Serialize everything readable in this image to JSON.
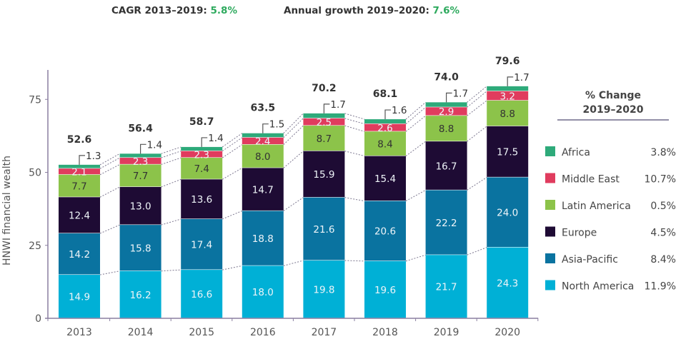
{
  "header": {
    "cagr_label": "CAGR 2013–2019: ",
    "cagr_value": "5.8%",
    "annual_label": "Annual growth 2019–2020: ",
    "annual_value": "7.6%"
  },
  "chart_data": {
    "type": "bar",
    "stacked": true,
    "title": "",
    "xlabel": "",
    "ylabel": "HNWI financial wealth",
    "ylim": [
      0,
      88
    ],
    "yticks": [
      0,
      25,
      50,
      75
    ],
    "categories": [
      "2013",
      "2014",
      "2015",
      "2016",
      "2017",
      "2018",
      "2019",
      "2020"
    ],
    "totals": [
      52.6,
      56.4,
      58.7,
      63.5,
      70.2,
      68.1,
      74.0,
      79.6
    ],
    "series": [
      {
        "name": "North America",
        "color": "#00b0d6",
        "label_color": "white",
        "values": [
          14.9,
          16.2,
          16.6,
          18.0,
          19.8,
          19.6,
          21.7,
          24.3
        ]
      },
      {
        "name": "Asia-Pacific",
        "color": "#0a73a0",
        "label_color": "white",
        "values": [
          14.2,
          15.8,
          17.4,
          18.8,
          21.6,
          20.6,
          22.2,
          24.0
        ]
      },
      {
        "name": "Europe",
        "color": "#1e0b34",
        "label_color": "white",
        "values": [
          12.4,
          13.0,
          13.6,
          14.7,
          15.9,
          15.4,
          16.7,
          17.5
        ]
      },
      {
        "name": "Latin America",
        "color": "#8cc34a",
        "label_color": "dark",
        "values": [
          7.7,
          7.7,
          7.4,
          8.0,
          8.7,
          8.4,
          8.8,
          8.8
        ]
      },
      {
        "name": "Middle East",
        "color": "#e03c5e",
        "label_color": "white",
        "values": [
          2.1,
          2.3,
          2.3,
          2.4,
          2.5,
          2.6,
          2.9,
          3.2
        ]
      },
      {
        "name": "Africa",
        "color": "#2eaa7a",
        "label_color": "callout",
        "values": [
          1.3,
          1.4,
          1.4,
          1.5,
          1.7,
          1.6,
          1.7,
          1.7
        ]
      }
    ],
    "legend": {
      "title_line1": "% Change",
      "title_line2": "2019–2020",
      "placement": "right",
      "items": [
        {
          "name": "Africa",
          "color": "#2eaa7a",
          "change": "3.8%"
        },
        {
          "name": "Middle East",
          "color": "#e03c5e",
          "change": "10.7%"
        },
        {
          "name": "Latin America",
          "color": "#8cc34a",
          "change": "0.5%"
        },
        {
          "name": "Europe",
          "color": "#1e0b34",
          "change": "4.5%"
        },
        {
          "name": "Asia-Pacific",
          "color": "#0a73a0",
          "change": "8.4%"
        },
        {
          "name": "North America",
          "color": "#00b0d6",
          "change": "11.9%"
        }
      ]
    },
    "connector_lines": "dotted",
    "grid": false
  }
}
